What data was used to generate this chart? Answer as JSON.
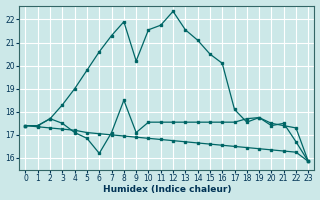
{
  "xlabel": "Humidex (Indice chaleur)",
  "bg_color": "#cce8e8",
  "grid_color": "#aadddd",
  "line_color": "#006666",
  "xlim": [
    -0.5,
    23.5
  ],
  "ylim": [
    15.5,
    22.6
  ],
  "xticks": [
    0,
    1,
    2,
    3,
    4,
    5,
    6,
    7,
    8,
    9,
    10,
    11,
    12,
    13,
    14,
    15,
    16,
    17,
    18,
    19,
    20,
    21,
    22,
    23
  ],
  "yticks": [
    16,
    17,
    18,
    19,
    20,
    21,
    22
  ],
  "curve1_x": [
    0,
    1,
    2,
    3,
    4,
    5,
    6,
    7,
    8,
    9,
    10,
    11,
    12,
    13,
    14,
    15,
    16,
    17,
    18,
    19,
    20,
    21,
    22,
    23
  ],
  "curve1_y": [
    17.4,
    17.4,
    17.7,
    18.3,
    19.0,
    19.8,
    20.6,
    21.3,
    21.9,
    20.2,
    21.55,
    21.75,
    22.35,
    21.55,
    21.1,
    20.5,
    20.1,
    18.1,
    17.55,
    17.75,
    17.4,
    17.5,
    16.7,
    15.85
  ],
  "curve2_x": [
    0,
    1,
    2,
    3,
    4,
    5,
    6,
    7,
    8,
    9,
    10,
    11,
    12,
    13,
    14,
    15,
    16,
    17,
    18,
    19,
    20,
    21,
    22,
    23
  ],
  "curve2_y": [
    17.4,
    17.4,
    17.7,
    17.5,
    17.1,
    16.85,
    16.2,
    17.1,
    18.5,
    17.1,
    17.55,
    17.55,
    17.55,
    17.55,
    17.55,
    17.55,
    17.55,
    17.55,
    17.7,
    17.75,
    17.5,
    17.4,
    17.3,
    15.85
  ],
  "curve3_x": [
    0,
    1,
    2,
    3,
    4,
    5,
    6,
    7,
    8,
    9,
    10,
    11,
    12,
    13,
    14,
    15,
    16,
    17,
    18,
    19,
    20,
    21,
    22,
    23
  ],
  "curve3_y": [
    17.4,
    17.35,
    17.3,
    17.25,
    17.2,
    17.1,
    17.05,
    17.0,
    16.95,
    16.9,
    16.85,
    16.8,
    16.75,
    16.7,
    16.65,
    16.6,
    16.55,
    16.5,
    16.45,
    16.4,
    16.35,
    16.3,
    16.25,
    15.85
  ]
}
